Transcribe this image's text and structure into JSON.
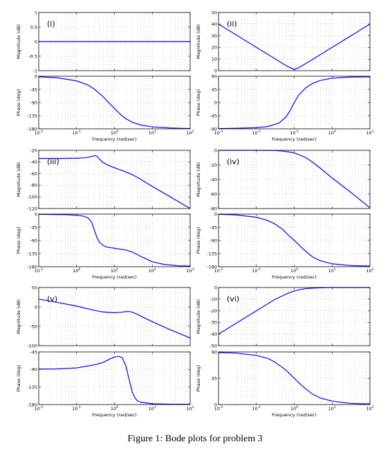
{
  "caption": "Figure 1: Bode plots for problem 3",
  "colors": {
    "curve": "#0000ff",
    "axes": "#000000",
    "grid": "#b0b0b0",
    "background": "#ffffff"
  },
  "chart_data": [
    {
      "label": "(i)",
      "type": "line",
      "scale": "semilogx",
      "grid": true,
      "xlabel": "Frequency  (rad/sec)",
      "xlim": [
        0.01,
        100
      ],
      "x_ticks": [
        0.01,
        0.1,
        1,
        10,
        100
      ],
      "x_tick_labels": [
        "10^-2",
        "10^-1",
        "10^0",
        "10^1",
        "10^2"
      ],
      "magnitude": {
        "ylabel": "Magnitude (dB)",
        "ylim": [
          -1,
          1
        ],
        "y_ticks": [
          -1,
          -0.5,
          0,
          0.5,
          1
        ],
        "y_tick_labels": [
          "-1",
          "-0.5",
          "0",
          "0.5",
          "1"
        ],
        "x": [
          0.01,
          0.1,
          1,
          10,
          100
        ],
        "y": [
          0,
          0,
          0,
          0,
          0
        ]
      },
      "phase": {
        "ylabel": "Phase (deg)",
        "ylim": [
          -180,
          0
        ],
        "y_ticks": [
          -180,
          -135,
          -90,
          -45,
          0
        ],
        "y_tick_labels": [
          "-180",
          "-135",
          "-90",
          "-45",
          "0"
        ],
        "x": [
          0.01,
          0.03,
          0.1,
          0.2,
          0.3,
          0.5,
          0.7,
          1,
          1.5,
          2,
          3,
          5,
          10,
          30,
          100
        ],
        "y": [
          -2,
          -5,
          -16,
          -30,
          -45,
          -70,
          -90,
          -110,
          -133,
          -145,
          -158,
          -167,
          -173,
          -177,
          -179
        ]
      }
    },
    {
      "label": "(ii)",
      "type": "line",
      "scale": "semilogx",
      "grid": true,
      "xlabel": "Frequency  (rad/sec)",
      "xlim": [
        0.001,
        10
      ],
      "x_ticks": [
        0.001,
        0.01,
        0.1,
        1,
        10
      ],
      "x_tick_labels": [
        "10^-3",
        "10^-2",
        "10^-1",
        "10^0",
        "10^1"
      ],
      "magnitude": {
        "ylabel": "Magnitude (dB)",
        "ylim": [
          0,
          50
        ],
        "y_ticks": [
          0,
          10,
          20,
          30,
          40,
          50
        ],
        "y_tick_labels": [
          "0",
          "10",
          "20",
          "30",
          "40",
          "50"
        ],
        "x": [
          0.001,
          0.003,
          0.01,
          0.03,
          0.05,
          0.07,
          0.1,
          0.13,
          0.2,
          0.3,
          1,
          3,
          10
        ],
        "y": [
          40,
          30.5,
          20,
          10.5,
          6,
          3.3,
          1,
          2.5,
          6,
          9.5,
          20,
          29.5,
          40
        ]
      },
      "phase": {
        "ylabel": "Phase (deg)",
        "ylim": [
          -90,
          90
        ],
        "y_ticks": [
          -90,
          -45,
          0,
          45,
          90
        ],
        "y_tick_labels": [
          "-90",
          "-45",
          "0",
          "45",
          "90"
        ],
        "x": [
          0.001,
          0.003,
          0.01,
          0.02,
          0.04,
          0.06,
          0.08,
          0.1,
          0.13,
          0.2,
          0.3,
          0.5,
          1,
          3,
          10
        ],
        "y": [
          -89,
          -88,
          -86,
          -82,
          -70,
          -50,
          -25,
          0,
          25,
          50,
          65,
          76,
          83,
          87,
          88
        ]
      }
    },
    {
      "label": "(iii)",
      "type": "line",
      "scale": "semilogx",
      "grid": true,
      "xlabel": "Frequency  (rad/sec)",
      "xlim": [
        0.1,
        1000
      ],
      "x_ticks": [
        0.1,
        1,
        10,
        100,
        1000
      ],
      "x_tick_labels": [
        "10^-1",
        "10^0",
        "10^1",
        "10^2",
        "10^3"
      ],
      "magnitude": {
        "ylabel": "Magnitude (dB)",
        "ylim": [
          -120,
          -20
        ],
        "y_ticks": [
          -120,
          -100,
          -80,
          -60,
          -40,
          -20
        ],
        "y_tick_labels": [
          "-120",
          "-100",
          "-80",
          "-60",
          "-40",
          "-20"
        ],
        "x": [
          0.1,
          0.3,
          1,
          1.5,
          2,
          2.5,
          3,
          3.5,
          4,
          5,
          7,
          10,
          20,
          30,
          50,
          100,
          300,
          1000
        ],
        "y": [
          -34,
          -34,
          -33.5,
          -33,
          -32,
          -30.5,
          -29,
          -30,
          -35,
          -41,
          -46,
          -50,
          -57,
          -62,
          -70,
          -82,
          -100,
          -120
        ]
      },
      "phase": {
        "ylabel": "Phase (deg)",
        "ylim": [
          -180,
          0
        ],
        "y_ticks": [
          -180,
          -135,
          -90,
          -45,
          0
        ],
        "y_tick_labels": [
          "-180",
          "-135",
          "-90",
          "-45",
          "0"
        ],
        "x": [
          0.1,
          0.5,
          1,
          1.5,
          2,
          2.5,
          3,
          3.5,
          4,
          5,
          6,
          10,
          20,
          30,
          50,
          100,
          200,
          500,
          1000
        ],
        "y": [
          -1,
          -2,
          -4,
          -7,
          -13,
          -28,
          -58,
          -82,
          -96,
          -107,
          -112,
          -117,
          -123,
          -130,
          -145,
          -163,
          -172,
          -177,
          -178
        ]
      }
    },
    {
      "label": "(iv)",
      "type": "line",
      "scale": "semilogx",
      "grid": true,
      "xlabel": "Frequency  (rad/sec)",
      "xlim": [
        0.01,
        100
      ],
      "x_ticks": [
        0.01,
        0.1,
        1,
        10,
        100
      ],
      "x_tick_labels": [
        "10^-2",
        "10^-1",
        "10^0",
        "10^1",
        "10^2"
      ],
      "magnitude": {
        "ylabel": "Magnitude (dB)",
        "ylim": [
          -80,
          0
        ],
        "y_ticks": [
          -80,
          -60,
          -40,
          -20,
          0
        ],
        "y_tick_labels": [
          "-80",
          "-60",
          "-40",
          "-20",
          "0"
        ],
        "x": [
          0.01,
          0.1,
          0.3,
          0.5,
          0.7,
          1,
          1.5,
          2,
          3,
          5,
          10,
          30,
          100
        ],
        "y": [
          0,
          0,
          -0.3,
          -1,
          -2,
          -3.5,
          -7,
          -10,
          -16,
          -25,
          -38,
          -57,
          -79
        ]
      },
      "phase": {
        "ylabel": "Phase (deg)",
        "ylim": [
          -180,
          0
        ],
        "y_ticks": [
          -180,
          -135,
          -90,
          -45,
          0
        ],
        "y_tick_labels": [
          "-180",
          "-135",
          "-90",
          "-45",
          "0"
        ],
        "x": [
          0.01,
          0.03,
          0.1,
          0.2,
          0.3,
          0.5,
          0.7,
          1,
          1.5,
          2,
          3,
          5,
          10,
          30,
          100
        ],
        "y": [
          -1,
          -3,
          -11,
          -22,
          -33,
          -53,
          -72,
          -90,
          -112,
          -127,
          -146,
          -160,
          -170,
          -176,
          -178
        ]
      }
    },
    {
      "label": "(v)",
      "type": "line",
      "scale": "semilogx",
      "grid": true,
      "xlabel": "Frequency  (rad/sec)",
      "xlim": [
        0.01,
        100
      ],
      "x_ticks": [
        0.01,
        0.1,
        1,
        10,
        100
      ],
      "x_tick_labels": [
        "10^-2",
        "10^-1",
        "10^0",
        "10^1",
        "10^2"
      ],
      "magnitude": {
        "ylabel": "Magnitude (dB)",
        "ylim": [
          -100,
          50
        ],
        "y_ticks": [
          -100,
          -50,
          0,
          50
        ],
        "y_tick_labels": [
          "-100",
          "-50",
          "0",
          "50"
        ],
        "x": [
          0.01,
          0.03,
          0.1,
          0.3,
          0.5,
          1,
          1.5,
          2,
          2.5,
          3,
          4,
          5,
          10,
          30,
          100
        ],
        "y": [
          20,
          12,
          2,
          -9,
          -13,
          -15,
          -14,
          -12,
          -12,
          -14,
          -19,
          -24,
          -38,
          -59,
          -80
        ]
      },
      "phase": {
        "ylabel": "Phase (deg)",
        "ylim": [
          -180,
          -45
        ],
        "y_ticks": [
          -180,
          -135,
          -90,
          -45
        ],
        "y_tick_labels": [
          "-180",
          "-135",
          "-90",
          "-45"
        ],
        "x": [
          0.01,
          0.03,
          0.1,
          0.3,
          0.5,
          0.8,
          1,
          1.3,
          1.6,
          2,
          2.5,
          3,
          3.5,
          4,
          5,
          10,
          30,
          100
        ],
        "y": [
          -89,
          -88.5,
          -86,
          -78,
          -72,
          -62,
          -58,
          -56,
          -60,
          -80,
          -120,
          -150,
          -163,
          -170,
          -174,
          -178,
          -179,
          -179
        ]
      }
    },
    {
      "label": "(vi)",
      "type": "line",
      "scale": "semilogx",
      "grid": true,
      "xlabel": "Frequency  (rad/sec)",
      "xlim": [
        0.01,
        100
      ],
      "x_ticks": [
        0.01,
        0.1,
        1,
        10,
        100
      ],
      "x_tick_labels": [
        "10^-2",
        "10^-1",
        "10^0",
        "10^1",
        "10^2"
      ],
      "magnitude": {
        "ylabel": "Magnitude (dB)",
        "ylim": [
          -50,
          0
        ],
        "y_ticks": [
          -50,
          -40,
          -30,
          -20,
          -10,
          0
        ],
        "y_tick_labels": [
          "-50",
          "-40",
          "-30",
          "-20",
          "-10",
          "0"
        ],
        "x": [
          0.01,
          0.03,
          0.1,
          0.2,
          0.3,
          0.5,
          0.7,
          1,
          1.5,
          2,
          3,
          5,
          10,
          30,
          100
        ],
        "y": [
          -40,
          -30.5,
          -20,
          -14,
          -10.5,
          -7,
          -4.8,
          -3,
          -1.6,
          -1,
          -0.5,
          -0.2,
          0,
          0,
          0
        ]
      },
      "phase": {
        "ylabel": "Phase (deg)",
        "ylim": [
          0,
          90
        ],
        "y_ticks": [
          0,
          45,
          90
        ],
        "y_tick_labels": [
          "0",
          "45",
          "90"
        ],
        "x": [
          0.01,
          0.03,
          0.1,
          0.2,
          0.3,
          0.5,
          0.7,
          1,
          1.5,
          2,
          3,
          5,
          10,
          30,
          100
        ],
        "y": [
          89,
          88,
          84,
          79,
          73,
          63,
          55,
          45,
          34,
          27,
          18,
          11,
          6,
          2,
          1
        ]
      }
    }
  ]
}
